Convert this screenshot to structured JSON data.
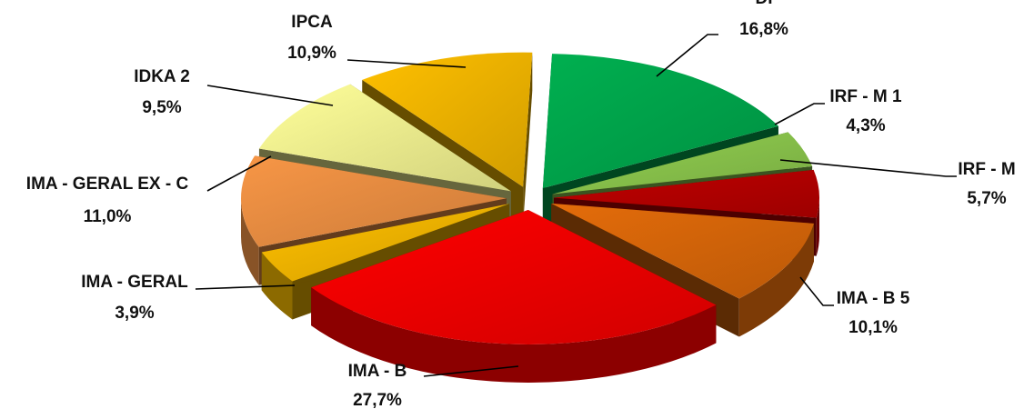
{
  "chart_data": {
    "type": "pie",
    "title": "",
    "legend": "none",
    "slices": [
      {
        "label": "DI",
        "value": 16.8,
        "value_label": "16,8%",
        "color": "#00B050"
      },
      {
        "label": "IRF - M 1",
        "value": 4.3,
        "value_label": "4,3%",
        "color": "#92D050"
      },
      {
        "label": "IRF - M",
        "value": 5.7,
        "value_label": "5,7%",
        "color": "#C00000"
      },
      {
        "label": "IMA - B 5",
        "value": 10.1,
        "value_label": "10,1%",
        "color": "#E46C0A"
      },
      {
        "label": "IMA - B",
        "value": 27.7,
        "value_label": "27,7%",
        "color": "#FF0000"
      },
      {
        "label": "IMA - GERAL",
        "value": 3.9,
        "value_label": "3,9%",
        "color": "#FFC000"
      },
      {
        "label": "IMA - GERAL EX - C",
        "value": 11.0,
        "value_label": "11,0%",
        "color": "#F79646"
      },
      {
        "label": "IDKA 2",
        "value": 9.5,
        "value_label": "9,5%",
        "color": "#FFFF99"
      },
      {
        "label": "IPCA",
        "value": 10.9,
        "value_label": "10,9%",
        "color": "#FFC000"
      }
    ]
  }
}
